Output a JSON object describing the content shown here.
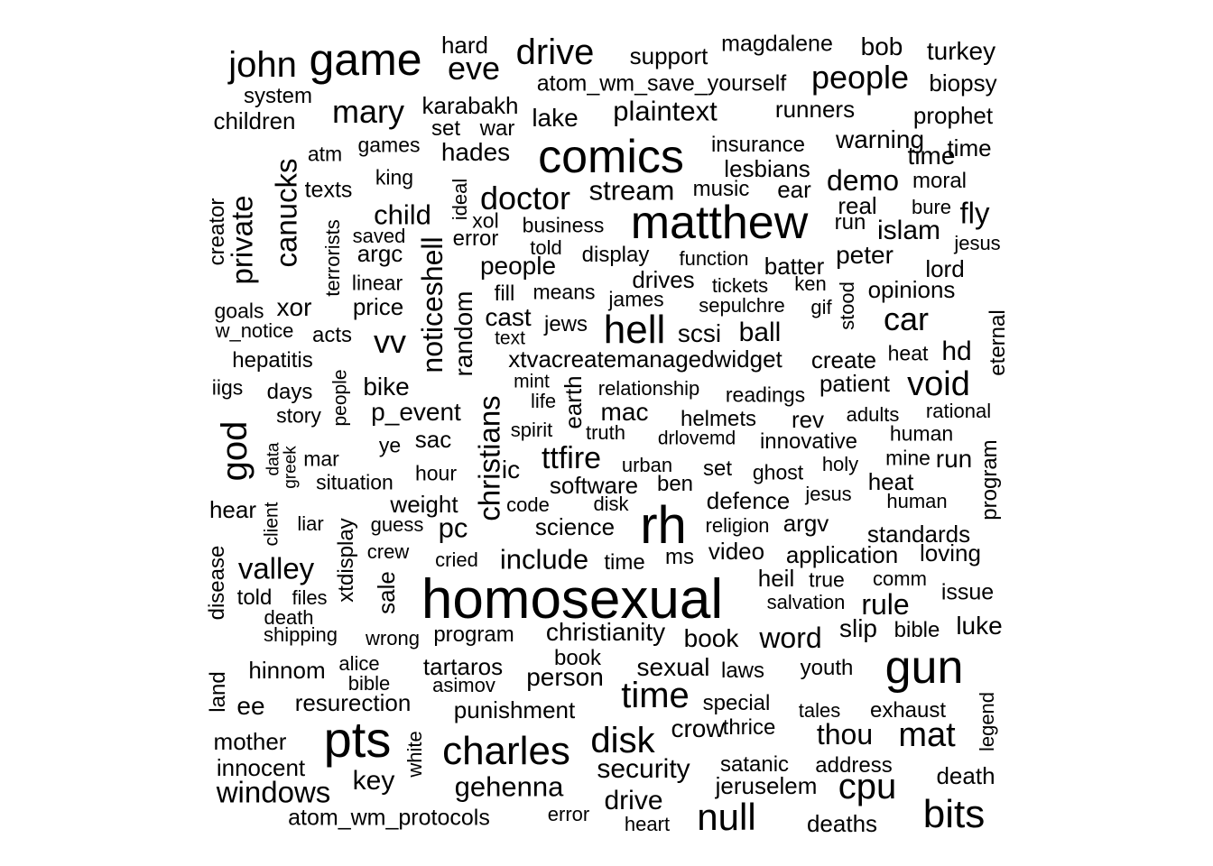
{
  "words": [
    "john",
    "game",
    "eve",
    "hard",
    "drive",
    "support",
    "magdalene",
    "bob",
    "turkey",
    "atom_wm_save_yourself",
    "people",
    "biopsy",
    "system",
    "children",
    "mary",
    "karabakh",
    "set",
    "war",
    "lake",
    "plaintext",
    "runners",
    "prophet",
    "time",
    "atm",
    "games",
    "hades",
    "comics",
    "insurance",
    "warning",
    "time",
    "canucks",
    "king",
    "lesbians",
    "texts",
    "ideal",
    "doctor",
    "stream",
    "music",
    "ear",
    "demo",
    "moral",
    "creator",
    "private",
    "terrorists",
    "child",
    "xol",
    "business",
    "matthew",
    "real",
    "bure",
    "fly",
    "saved",
    "error",
    "told",
    "run",
    "islam",
    "jesus",
    "argc",
    "display",
    "function",
    "peter",
    "people",
    "batter",
    "lord",
    "linear",
    "drives",
    "fill",
    "means",
    "tickets",
    "ken",
    "stood",
    "opinions",
    "goals",
    "xor",
    "price",
    "noticeshell",
    "random",
    "cast",
    "james",
    "sepulchre",
    "gif",
    "car",
    "w_notice",
    "acts",
    "vv",
    "jews",
    "hell",
    "scsi",
    "ball",
    "eternal",
    "text",
    "hepatitis",
    "xtvacreatemanagedwidget",
    "create",
    "heat",
    "hd",
    "iigs",
    "days",
    "people",
    "bike",
    "mint",
    "life",
    "relationship",
    "readings",
    "patient",
    "void",
    "christians",
    "earth",
    "god",
    "story",
    "p_event",
    "mac",
    "helmets",
    "rev",
    "adults",
    "rational",
    "ye",
    "sac",
    "spirit",
    "truth",
    "drlovemd",
    "innovative",
    "human",
    "data",
    "mar",
    "greek",
    "ttfire",
    "urban",
    "holy",
    "mine",
    "run",
    "program",
    "ic",
    "hour",
    "ben",
    "set",
    "ghost",
    "heat",
    "situation",
    "software",
    "jesus",
    "hear",
    "client",
    "weight",
    "code",
    "disk",
    "defence",
    "human",
    "xtdisplay",
    "liar",
    "guess",
    "pc",
    "rh",
    "science",
    "religion",
    "argv",
    "standards",
    "disease",
    "crew",
    "video",
    "application",
    "loving",
    "valley",
    "include",
    "cried",
    "ms",
    "time",
    "sale",
    "heil",
    "true",
    "comm",
    "issue",
    "told",
    "files",
    "salvation",
    "rule",
    "homosexual",
    "death",
    "shipping",
    "wrong",
    "program",
    "christianity",
    "slip",
    "bible",
    "book",
    "word",
    "luke",
    "alice",
    "hinnom",
    "tartaros",
    "book",
    "person",
    "sexual",
    "laws",
    "youth",
    "gun",
    "bible",
    "asimov",
    "land",
    "time",
    "ee",
    "resurection",
    "special",
    "punishment",
    "exhaust",
    "legend",
    "tales",
    "crow",
    "thrice",
    "mother",
    "white",
    "thou",
    "mat",
    "pts",
    "charles",
    "disk",
    "satanic",
    "address",
    "innocent",
    "death",
    "security",
    "key",
    "windows",
    "gehenna",
    "jeruselem",
    "cpu",
    "drive",
    "atom_wm_protocols",
    "error",
    "null",
    "bits",
    "heart",
    "deaths"
  ]
}
